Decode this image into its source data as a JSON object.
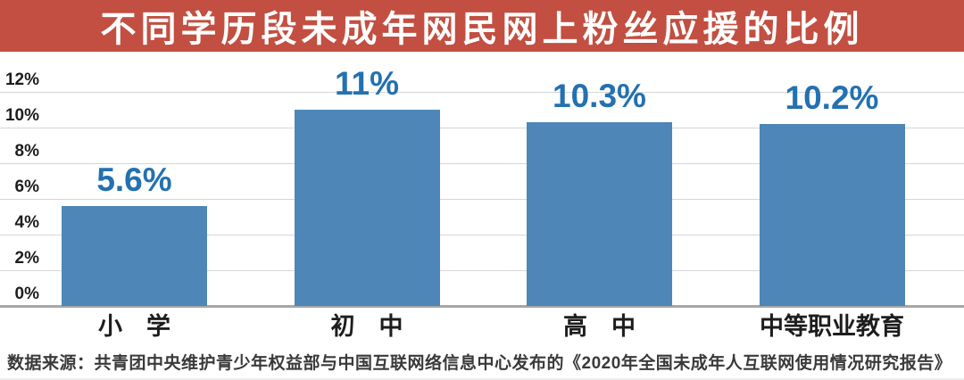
{
  "banner": {
    "title": "不同学历段未成年网民网上粉丝应援的比例"
  },
  "source_note": "数据来源：共青团中央维护青少年权益部与中国互联网络信息中心发布的《2020年全国未成年人互联网使用情况研究报告》",
  "chart_data": {
    "type": "bar",
    "title": "不同学历段未成年网民网上粉丝应援的比例",
    "categories": [
      "小　学",
      "初　中",
      "高　中",
      "中等职业教育"
    ],
    "values": [
      5.6,
      11,
      10.3,
      10.2
    ],
    "value_labels": [
      "5.6%",
      "11%",
      "10.3%",
      "10.2%"
    ],
    "xlabel": "",
    "ylabel": "",
    "ylim": [
      0,
      12
    ],
    "ytick_values": [
      0,
      2,
      4,
      6,
      8,
      10,
      12
    ],
    "ytick_labels": [
      "0%",
      "2%",
      "4%",
      "6%",
      "8%",
      "10%",
      "12%"
    ],
    "grid": true,
    "legend": "none",
    "colors": {
      "banner": "#c24f41",
      "banner_text": "#ffffff",
      "bar": "#4d86b7",
      "value_label": "#2371b1",
      "axis_text": "#1d1d1d",
      "gridline": "#d6d6d6",
      "baseline": "#a6a6a6",
      "source_text": "#3a3a3a"
    }
  }
}
